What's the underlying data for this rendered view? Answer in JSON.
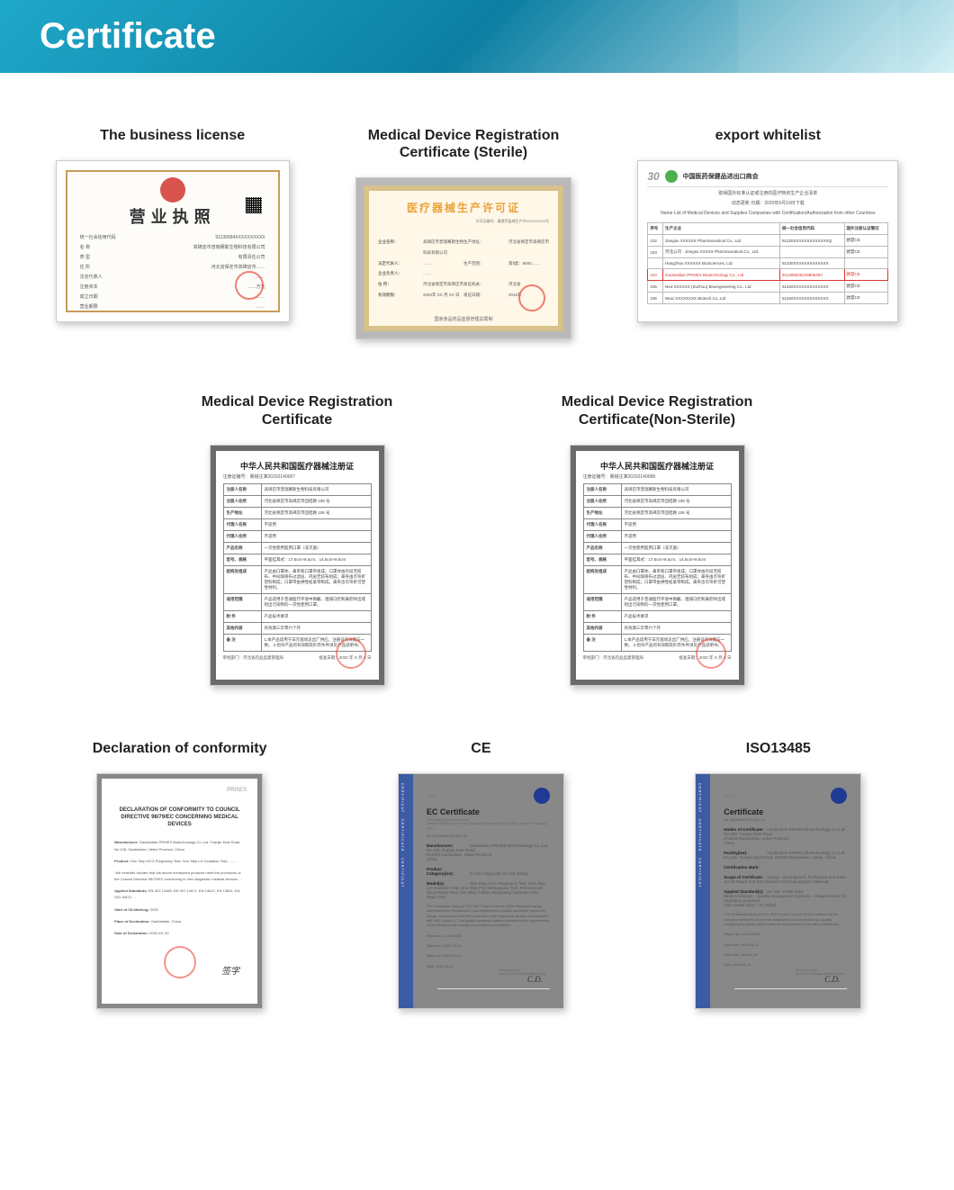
{
  "header": {
    "title": "Certificate"
  },
  "colors": {
    "header_gradient_start": "#1fa8c9",
    "header_gradient_mid": "#0c7fa3",
    "header_gradient_end": "#d4f0f5",
    "text_dark": "#222222",
    "frame_shadow": "rgba(0,0,0,0.25)",
    "stamp_red": "#e74c3c",
    "gold_border": "#d6c28a",
    "sterile_title": "#e9a23a",
    "blue_strip": "#3b5ba5",
    "tuv_blue": "#1f3a93",
    "green_dot": "#4caf50",
    "highlight_red": "#d33"
  },
  "row1": {
    "biz": {
      "title": "The business license",
      "heading": "营业执照",
      "lines": [
        [
          "统一社会信用代码",
          "91130684XXXXXXXXXX"
        ],
        [
          "名        称",
          "高碑店市普瑞赛斯生物科技有限公司"
        ],
        [
          "类        型",
          "有限责任公司"
        ],
        [
          "住        所",
          "河北省保定市高碑店市……"
        ],
        [
          "法定代表人",
          "……"
        ],
        [
          "注册资本",
          "……万元"
        ],
        [
          "成立日期",
          "……"
        ],
        [
          "营业期限",
          "……"
        ]
      ]
    },
    "sterile": {
      "title": "Medical Device Registration Certificate (Sterile)",
      "heading": "医疗器械生产许可证",
      "corner": "许可证编号：冀食药监械生产许XXXXXXXX号",
      "rows": [
        [
          "企业名称：",
          "高碑店市普瑞赛斯生物科技有限公司",
          "生产地址：",
          "河北省保定市高碑店市"
        ],
        [
          "法定代表人：",
          "……",
          "生产范围：",
          "第Ⅱ类：6840……"
        ],
        [
          "企业负责人：",
          "……",
          "",
          ""
        ],
        [
          "住        所：",
          "河北省保定市高碑店市",
          "发证机关：",
          "河北省"
        ],
        [
          "有效期限：",
          "2020年 XX 月 XX 日",
          "发证日期：",
          "2015年"
        ]
      ],
      "footer": "国家食品药品监督管理总局制"
    },
    "export": {
      "title": "export whitelist",
      "logo_num": "30",
      "logo_text": "中国医药保健品进出口商会",
      "sub1": "取得国外标准认证或注册的医疗物资生产企业清单",
      "sub2": "动态更新 日期：2020年6月19日下载",
      "sub3": "Name List of Medical Devices and Supplies Companies with Certification/Authorization from other Countries",
      "headers": [
        "序号",
        "生产企业",
        "统一社会信用代码",
        "国外注册认证情况"
      ],
      "rows": [
        [
          "102",
          "Jiangsu XXXXXX Pharmaceutical Co., Ltd",
          "91320XXXXXXXXXXXXXQ",
          "欧盟CE"
        ],
        [
          "103",
          "河北公司 · Jiangsu XXXXX Pharmaceutical Co., Ltd.",
          "",
          "欧盟CE"
        ],
        [
          "",
          "Hangzhou XXXXXX BioSciences, Ltd.",
          "91330XXXXXXXXXXXXX",
          ""
        ],
        [
          "104",
          "Gaobeidian PRISES Biotechnology Co., Ltd",
          "91130684524990649Y",
          "欧盟CE"
        ],
        [
          "105",
          "Neo-XXXXXX (Suzhou) Bioengineering Co., Ltd",
          "91320XXXXXXXXXXXXX",
          "欧盟CE"
        ],
        [
          "106",
          "Wuxi XXXXXXXX Biotech Co.,Ltd",
          "91320XXXXXXXXXXXXX",
          "欧盟CE"
        ]
      ],
      "highlight_row_index": 3
    }
  },
  "row2": {
    "left_title": "Medical Device Registration Certificate",
    "right_title": "Medical Device Registration Certificate(Non-Sterile)",
    "doc_title": "中华人民共和国医疗器械注册证",
    "left_regno": "注册证编号：冀械注准20202140007",
    "right_regno": "注册证编号：冀械注准20202140008",
    "rows": [
      [
        "注册人名称",
        "高碑店市普瑞赛斯生物科技有限公司"
      ],
      [
        "注册人住所",
        "河北省保定市高碑店市团结路 108 号"
      ],
      [
        "生产地址",
        "河北省保定市高碑店市团结路 108 号"
      ],
      [
        "代理人名称",
        "不适用"
      ],
      [
        "代理人住所",
        "不适用"
      ],
      [
        "产品名称",
        "一次性使用医用口罩（非灭菌）"
      ],
      [
        "型号、规格",
        "平面挂耳式：17.5cm×9.5cm、14.5cm×9.5cm"
      ],
      [
        "结构及组成",
        "产品由口罩体、鼻夹和口罩带组成。口罩体由外层无纺布、中间熔喷布过滤层、内层无纺布组成；鼻夹由可弯折塑料制成；口罩带由弹性松紧带制成。鼻夹含可弯折可塑性材料。"
      ],
      [
        "适用范围",
        "产品适用于普通医疗环境中佩戴、阻隔口腔和鼻腔呼出或喷出污染物的一次性使用口罩。"
      ],
      [
        "附    件",
        "产品技术要求"
      ],
      [
        "其他内容",
        "有效期三年零六个月"
      ],
      [
        "备    注",
        "1.本产品适用于非灭菌状态出厂供应，注册证有效期与一致。 2.指导产品的有效期及贮存条件详见产品说明书。"
      ]
    ],
    "foot_left": "审批部门：河北省药品监督管理局",
    "foot_right": "批准日期：2020 年 X 月 X 日"
  },
  "row3": {
    "decl": {
      "title": "Declaration of conformity",
      "logo": "PRISES",
      "heading": "DECLARATION OF CONFORMITY TO COUNCIL DIRECTIVE 98/79/EC CONCERNING MEDICAL DEVICES",
      "rows": [
        [
          "Manufacturer:",
          "Gaobeidian PRISES Biotechnology Co.,Ltd. Tuanjie East Road No.108, Gaobeidian, Hebei Province, China"
        ],
        [
          "Product:",
          "One Step HCG Pregnancy Test; One Step LH Ovulation Test; ……"
        ],
        [
          "",
          "We herewith declare that the above mentioned products meet the provisions of the Council Directive 98/79/EC concerning in vitro diagnostic medical devices …"
        ],
        [
          "Applied Standards:",
          "EN ISO 13485, EN ISO 14971, EN 13612, EN 13641, EN ISO 18113 …"
        ],
        [
          "Start of CE-Marking:",
          "2020"
        ],
        [
          "Place of Declaration:",
          "Gaobeidian, China"
        ],
        [
          "Date of Declaration:",
          "2020.XX.XX"
        ]
      ],
      "sig": "签字"
    },
    "ce": {
      "title": "CE",
      "dak": "DAkkS",
      "heading": "EC Certificate",
      "sub": "Full Quality Assurance System\\nDirective 98/79/EC on In Vitro Diagnostic Medical Devices (IVDD), Annex IV excluding (4,6)",
      "no": "No. V1 092296 0001 Rev. 02",
      "fields": [
        [
          "Manufacturer:",
          "Gaobeidian PRISES Biotechnology Co.,Ltd.\\nNo.108, Tuanjie East Road\\n074000 Gaobeidian, Hebei Province\\nChina"
        ],
        [
          "Product Category(ies):",
          "In Vitro diagnostic for self testing"
        ],
        [
          "Model(s):",
          "One Step HCG Pregnancy Test; One Step LH Ovulation Test; One Step FSH Menopause Test; Fecal Occult Blood Rapid Test; One Step Follicle Stimulating Hormone FSH Rapid Test"
        ]
      ],
      "body": "The Certification Body of TÜV SÜD Product Service GmbH declares that the aforementioned manufacturer has implemented a quality assurance system for design, manufacture and final inspection of the respective devices in accordance with IVDD Annex IV. This quality assurance system conforms to the requirements of this Directive and is subject to periodical surveillance.",
      "report": "Report no.: XJ1909339",
      "valid_from": "Valid from: 2020-04-13",
      "valid_until": "Valid until: 2024-02-02",
      "date": "Date: 2020-04-13",
      "signer": "Christoph Dicks\\nHead of Certification/Notified Body",
      "footer": "TÜV SÜD Product Service GmbH is Notified Body with identification no. 0123 · Ridlerstraße 65 · 80339 Munich · Germany"
    },
    "iso": {
      "title": "ISO13485",
      "dak": "DAkkS",
      "heading": "Certificate",
      "no": "No. Q5 092296 0001 Rev. 01",
      "fields": [
        [
          "Holder of Certificate:",
          "Gaobeidian PRISES Biotechnology Co.,Ltd.\\nNo.108, Tuanjie East Road\\n074000 Gaobeidian, Hebei Province\\nChina"
        ],
        [
          "Facility(ies):",
          "Gaobeidian PRISES Biotechnology Co.,Ltd.\\nNo.108, Tuanjie East Road, 074000 Gaobeidian, Hebei, China"
        ],
        [
          "Certification Mark:",
          ""
        ],
        [
          "Scope of Certificate:",
          "Design, Development, Production and Sales of IVD Rapid Test Kits (Immune Chromatographic Method)"
        ],
        [
          "Applied Standard(s):",
          "EN ISO 13485:2016\\nMedical devices – Quality management systems – Requirements for regulatory purposes\\n(ISO 13485:2016 + AC:2018)"
        ]
      ],
      "body": "The Certification Body of TÜV SÜD Product Service GmbH certifies that the company mentioned above has established and is maintaining a quality management system which meets the requirements of the listed standard(s).",
      "report": "Report No.: XJ1909339",
      "valid_from": "Valid from: 2020-04-13",
      "valid_until": "Valid until: 2024-02-02",
      "date": "Date, 2020-04-13",
      "signer": "Christoph Dicks\\nHead of Certification/Notified Body",
      "footer": "TÜV SÜD Product Service GmbH · Zertifizierungsstelle · Ridlerstraße 65 · 80339 München · Germany"
    }
  }
}
